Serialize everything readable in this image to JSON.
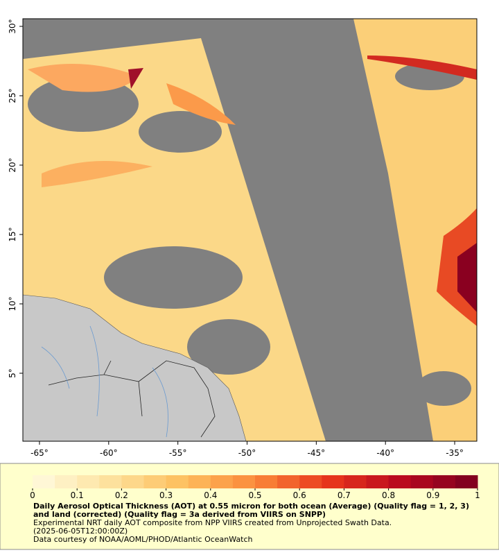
{
  "map": {
    "xlim": [
      -66.2,
      -33.4
    ],
    "ylim": [
      0.1,
      30.55
    ],
    "xticks": [
      {
        "value": -65,
        "label": "-65°"
      },
      {
        "value": -60,
        "label": "-60°"
      },
      {
        "value": -55,
        "label": "-55°"
      },
      {
        "value": -50,
        "label": "-50°"
      },
      {
        "value": -45,
        "label": "-45°"
      },
      {
        "value": -40,
        "label": "-40°"
      },
      {
        "value": -35,
        "label": "-35°"
      }
    ],
    "yticks": [
      {
        "value": 5,
        "label": "5°"
      },
      {
        "value": 10,
        "label": "10°"
      },
      {
        "value": 15,
        "label": "15°"
      },
      {
        "value": 20,
        "label": "20°"
      },
      {
        "value": 25,
        "label": "25°"
      },
      {
        "value": 30,
        "label": "30°"
      }
    ]
  },
  "colorbar": {
    "range": [
      0,
      1
    ],
    "ticks": [
      0,
      0.1,
      0.2,
      0.3,
      0.4,
      0.5,
      0.6,
      0.7,
      0.8,
      0.9,
      1
    ],
    "colors": [
      "#fffbe0",
      "#fde3a0",
      "#fdc060",
      "#fb8a3a",
      "#e8361c",
      "#b8081f",
      "#7a0020"
    ]
  },
  "caption": {
    "title": "Daily Aerosol Optical Thickness (AOT) at 0.55 micron for both ocean (Average) (Quality flag = 1, 2, 3) and land (corrected) (Quality flag = 3a derived from VIIRS on SNPP)",
    "lines": [
      "Experimental NRT daily AOT composite from NPP VIIRS created from Unprojected Swath Data.",
      "(2025-06-05T12:00:00Z)",
      "Data courtesy of NOAA/AOML/PHOD/Atlantic OceanWatch"
    ]
  }
}
